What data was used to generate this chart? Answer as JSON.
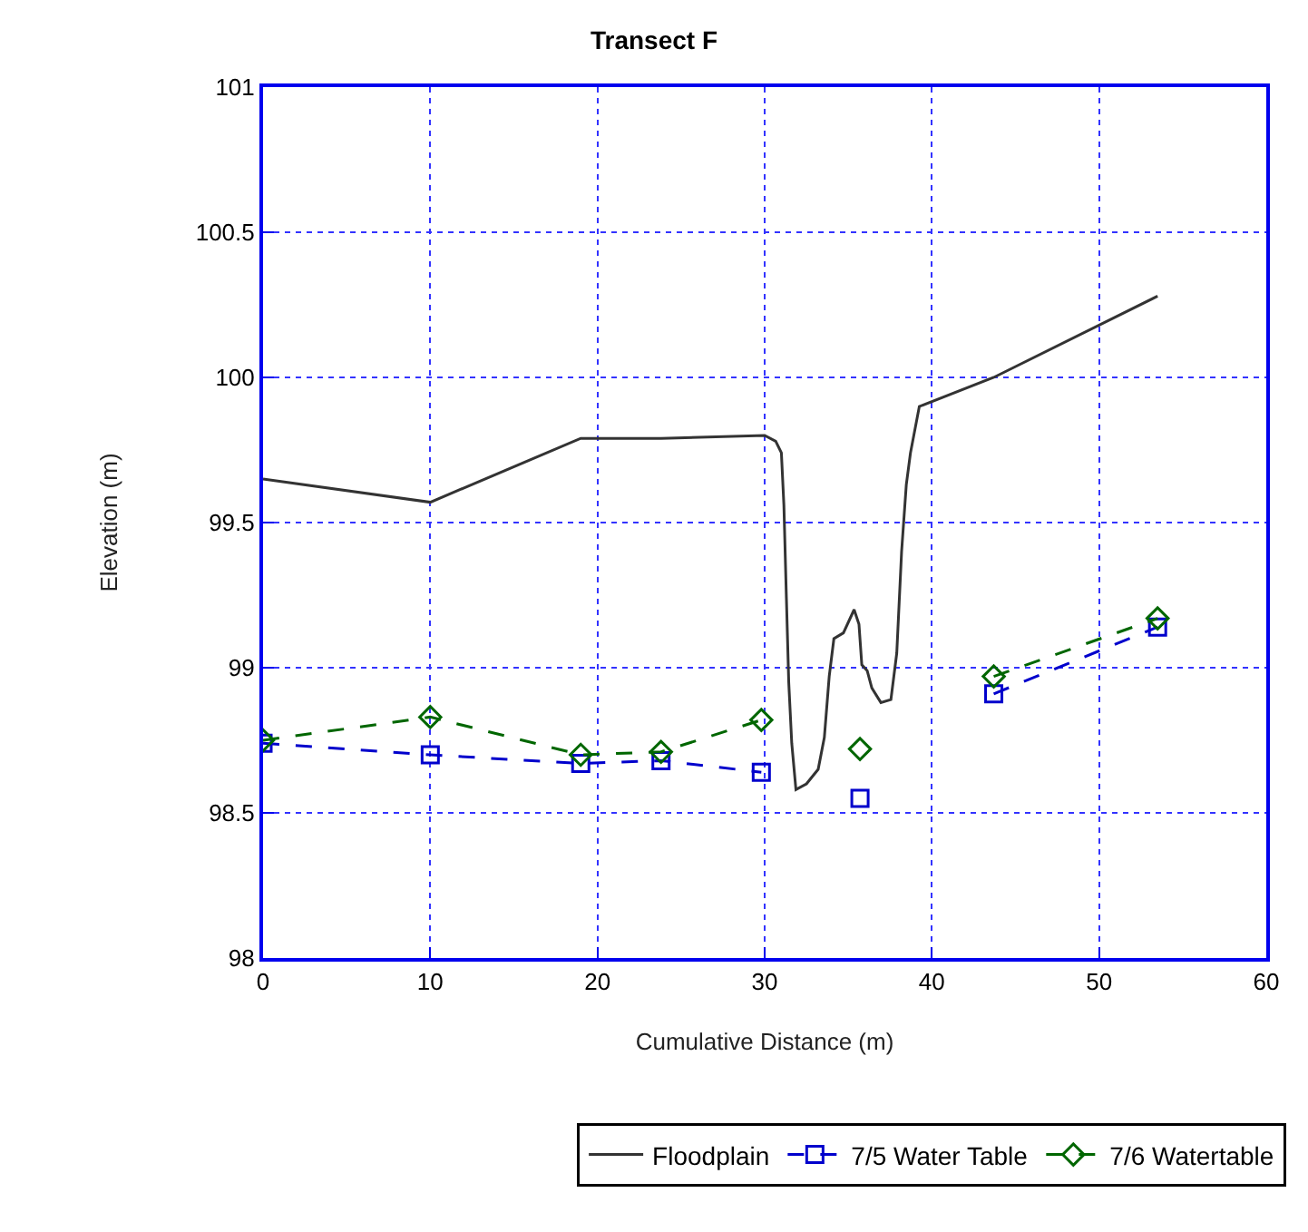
{
  "chart_data": {
    "type": "line",
    "title": "Transect F",
    "xlabel": "Cumulative Distance (m)",
    "ylabel": "Elevation (m)",
    "xlim": [
      0,
      60
    ],
    "xticks": [
      0,
      10,
      20,
      30,
      40,
      50,
      60
    ],
    "ylim": [
      98,
      101
    ],
    "yticks": [
      98,
      98.5,
      99,
      99.5,
      100,
      100.5,
      101
    ],
    "grid": true,
    "legend": "bottom",
    "series": [
      {
        "name": "Floodplain",
        "color": "#333333",
        "marker": "none",
        "line_style": "solid",
        "x": [
          0,
          10,
          19,
          23.8,
          30.0,
          30.66,
          31.0,
          31.15,
          31.3,
          31.44,
          31.62,
          31.87,
          32.5,
          33.2,
          33.57,
          33.86,
          34.14,
          34.71,
          35.35,
          35.64,
          35.81,
          36.13,
          36.41,
          36.95,
          37.55,
          37.9,
          38.19,
          38.47,
          38.72,
          39.25,
          43.7,
          53.5
        ],
        "values": [
          99.65,
          99.57,
          99.79,
          99.79,
          99.8,
          99.78,
          99.74,
          99.56,
          99.24,
          98.95,
          98.74,
          98.58,
          98.6,
          98.65,
          98.76,
          98.97,
          99.1,
          99.12,
          99.2,
          99.15,
          99.01,
          98.99,
          98.93,
          98.88,
          98.89,
          99.05,
          99.4,
          99.63,
          99.74,
          99.9,
          100.0,
          100.28
        ]
      },
      {
        "name": "7/5 Water Table",
        "color": "#0000cc",
        "marker": "square",
        "line_style": "dashed",
        "x": [
          0,
          10,
          19,
          23.8,
          29.8,
          32.7,
          35.7,
          39.7,
          43.7,
          53.5
        ],
        "values": [
          98.74,
          98.7,
          98.67,
          98.68,
          98.64,
          null,
          98.55,
          null,
          98.91,
          99.14
        ]
      },
      {
        "name": "7/6 Watertable",
        "color": "#006600",
        "marker": "diamond",
        "line_style": "dashed",
        "x": [
          0,
          10,
          19,
          23.8,
          29.8,
          32.7,
          35.7,
          39.7,
          43.7,
          53.5
        ],
        "values": [
          98.75,
          98.83,
          98.7,
          98.71,
          98.82,
          null,
          98.72,
          null,
          98.97,
          99.17
        ]
      }
    ]
  }
}
